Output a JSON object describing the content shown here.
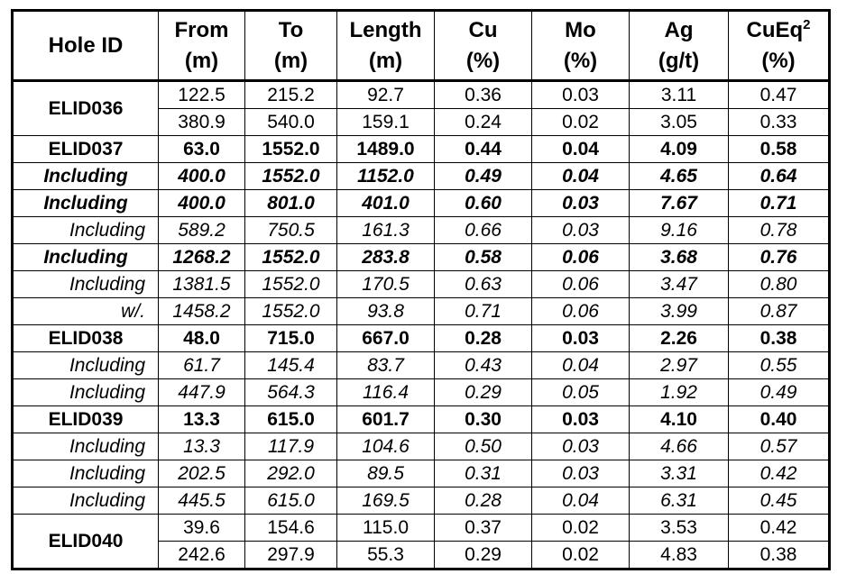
{
  "table": {
    "header": [
      {
        "name": "Hole ID"
      },
      {
        "name": "From",
        "unit": "(m)"
      },
      {
        "name": "To",
        "unit": "(m)"
      },
      {
        "name": "Length",
        "unit": "(m)"
      },
      {
        "name": "Cu",
        "unit": "(%)"
      },
      {
        "name": "Mo",
        "unit": "(%)"
      },
      {
        "name": "Ag",
        "unit": "(g/t)"
      },
      {
        "name": "CuEq",
        "sup": "2",
        "unit": "(%)"
      }
    ],
    "rows": [
      {
        "label": "ELID036",
        "values": [
          "122.5",
          "215.2",
          "92.7",
          "0.36",
          "0.03",
          "3.11",
          "0.47"
        ]
      },
      {
        "values": [
          "380.9",
          "540.0",
          "159.1",
          "0.24",
          "0.02",
          "3.05",
          "0.33"
        ]
      },
      {
        "label": "ELID037",
        "values": [
          "63.0",
          "1552.0",
          "1489.0",
          "0.44",
          "0.04",
          "4.09",
          "0.58"
        ]
      },
      {
        "label": "Including",
        "values": [
          "400.0",
          "1552.0",
          "1152.0",
          "0.49",
          "0.04",
          "4.65",
          "0.64"
        ]
      },
      {
        "label": "Including",
        "values": [
          "400.0",
          "801.0",
          "401.0",
          "0.60",
          "0.03",
          "7.67",
          "0.71"
        ]
      },
      {
        "label": "Including",
        "values": [
          "589.2",
          "750.5",
          "161.3",
          "0.66",
          "0.03",
          "9.16",
          "0.78"
        ]
      },
      {
        "label": "Including",
        "values": [
          "1268.2",
          "1552.0",
          "283.8",
          "0.58",
          "0.06",
          "3.68",
          "0.76"
        ]
      },
      {
        "label": "Including",
        "values": [
          "1381.5",
          "1552.0",
          "170.5",
          "0.63",
          "0.06",
          "3.47",
          "0.80"
        ]
      },
      {
        "label": "w/.",
        "values": [
          "1458.2",
          "1552.0",
          "93.8",
          "0.71",
          "0.06",
          "3.99",
          "0.87"
        ]
      },
      {
        "label": "ELID038",
        "values": [
          "48.0",
          "715.0",
          "667.0",
          "0.28",
          "0.03",
          "2.26",
          "0.38"
        ]
      },
      {
        "label": "Including",
        "values": [
          "61.7",
          "145.4",
          "83.7",
          "0.43",
          "0.04",
          "2.97",
          "0.55"
        ]
      },
      {
        "label": "Including",
        "values": [
          "447.9",
          "564.3",
          "116.4",
          "0.29",
          "0.05",
          "1.92",
          "0.49"
        ]
      },
      {
        "label": "ELID039",
        "values": [
          "13.3",
          "615.0",
          "601.7",
          "0.30",
          "0.03",
          "4.10",
          "0.40"
        ]
      },
      {
        "label": "Including",
        "values": [
          "13.3",
          "117.9",
          "104.6",
          "0.50",
          "0.03",
          "4.66",
          "0.57"
        ]
      },
      {
        "label": "Including",
        "values": [
          "202.5",
          "292.0",
          "89.5",
          "0.31",
          "0.03",
          "3.31",
          "0.42"
        ]
      },
      {
        "label": "Including",
        "values": [
          "445.5",
          "615.0",
          "169.5",
          "0.28",
          "0.04",
          "6.31",
          "0.45"
        ]
      },
      {
        "label": "ELID040",
        "values": [
          "39.6",
          "154.6",
          "115.0",
          "0.37",
          "0.02",
          "3.53",
          "0.42"
        ]
      },
      {
        "values": [
          "242.6",
          "297.9",
          "55.3",
          "0.29",
          "0.02",
          "4.83",
          "0.38"
        ]
      }
    ]
  }
}
